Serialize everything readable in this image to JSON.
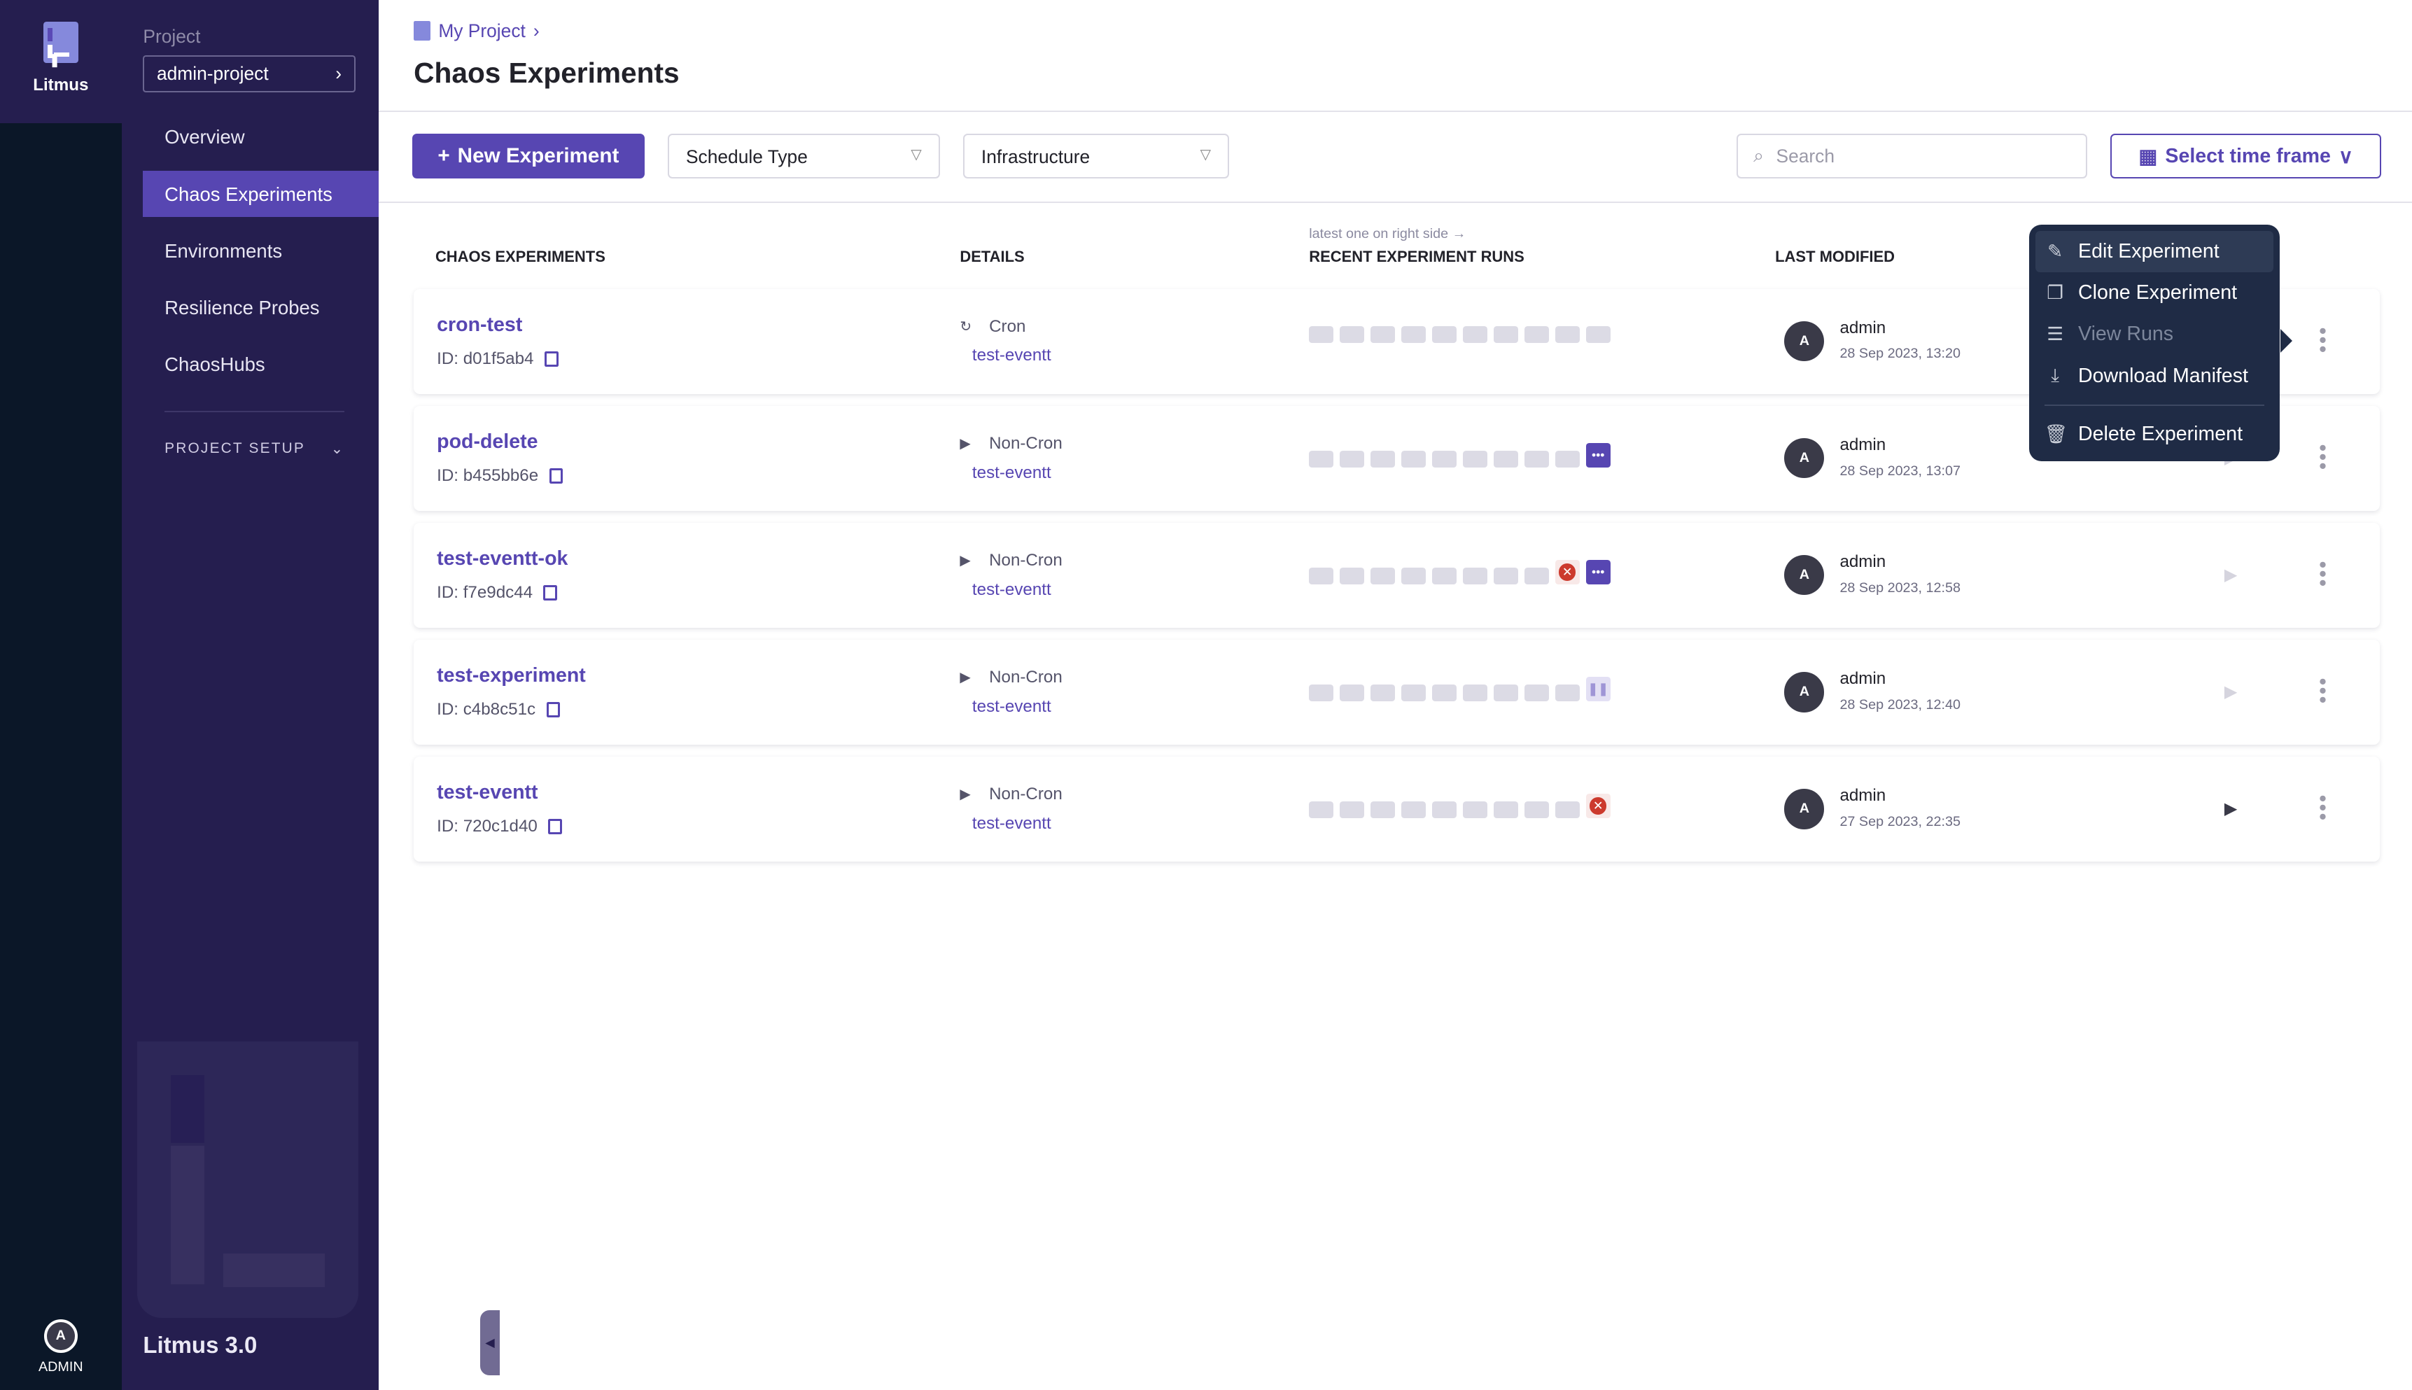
{
  "rail": {
    "brand": "Litmus",
    "user_initial": "A",
    "user_label": "ADMIN"
  },
  "sidebar": {
    "project_label": "Project",
    "project_value": "admin-project",
    "items": [
      {
        "label": "Overview"
      },
      {
        "label": "Chaos Experiments",
        "active": true
      },
      {
        "label": "Environments"
      },
      {
        "label": "Resilience Probes"
      },
      {
        "label": "ChaosHubs"
      }
    ],
    "section": "PROJECT SETUP",
    "version": "Litmus 3.0"
  },
  "header": {
    "breadcrumb": "My Project",
    "title": "Chaos Experiments"
  },
  "toolbar": {
    "new_label": "New Experiment",
    "schedule_type": "Schedule Type",
    "infrastructure": "Infrastructure",
    "search_placeholder": "Search",
    "time_frame": "Select time frame"
  },
  "table": {
    "headers": {
      "name": "CHAOS EXPERIMENTS",
      "details": "DETAILS",
      "runs": "RECENT EXPERIMENT RUNS",
      "runs_note": "latest one on right side →",
      "modified": "LAST MODIFIED"
    },
    "rows": [
      {
        "name": "cron-test",
        "id": "ID: d01f5ab4",
        "schedule": "Cron",
        "infra": "test-eventt",
        "runs": [
          "empty",
          "empty",
          "empty",
          "empty",
          "empty",
          "empty",
          "empty",
          "empty",
          "empty",
          "empty"
        ],
        "user": "admin",
        "initial": "A",
        "date": "28 Sep 2023, 13:20",
        "play_enabled": true
      },
      {
        "name": "pod-delete",
        "id": "ID: b455bb6e",
        "schedule": "Non-Cron",
        "infra": "test-eventt",
        "runs": [
          "empty",
          "empty",
          "empty",
          "empty",
          "empty",
          "empty",
          "empty",
          "empty",
          "empty",
          "running"
        ],
        "user": "admin",
        "initial": "A",
        "date": "28 Sep 2023, 13:07",
        "play_enabled": false
      },
      {
        "name": "test-eventt-ok",
        "id": "ID: f7e9dc44",
        "schedule": "Non-Cron",
        "infra": "test-eventt",
        "runs": [
          "empty",
          "empty",
          "empty",
          "empty",
          "empty",
          "empty",
          "empty",
          "empty",
          "failed",
          "running"
        ],
        "user": "admin",
        "initial": "A",
        "date": "28 Sep 2023, 12:58",
        "play_enabled": false
      },
      {
        "name": "test-experiment",
        "id": "ID: c4b8c51c",
        "schedule": "Non-Cron",
        "infra": "test-eventt",
        "runs": [
          "empty",
          "empty",
          "empty",
          "empty",
          "empty",
          "empty",
          "empty",
          "empty",
          "empty",
          "paused"
        ],
        "user": "admin",
        "initial": "A",
        "date": "28 Sep 2023, 12:40",
        "play_enabled": false
      },
      {
        "name": "test-eventt",
        "id": "ID: 720c1d40",
        "schedule": "Non-Cron",
        "infra": "test-eventt",
        "runs": [
          "empty",
          "empty",
          "empty",
          "empty",
          "empty",
          "empty",
          "empty",
          "empty",
          "empty",
          "failed"
        ],
        "user": "admin",
        "initial": "A",
        "date": "27 Sep 2023, 22:35",
        "play_enabled": true
      }
    ]
  },
  "context_menu": {
    "items": [
      {
        "label": "Edit Experiment",
        "icon": "pencil-icon"
      },
      {
        "label": "Clone Experiment",
        "icon": "clone-icon"
      },
      {
        "label": "View Runs",
        "icon": "list-icon",
        "disabled": true
      },
      {
        "label": "Download Manifest",
        "icon": "download-icon"
      },
      {
        "label": "Delete Experiment",
        "icon": "trash-icon"
      }
    ]
  },
  "colors": {
    "accent": "#5746b2",
    "sidebar": "#251e4f",
    "rail": "#0b1728",
    "menu": "#1f2b45",
    "failed": "#cc3a2d"
  }
}
